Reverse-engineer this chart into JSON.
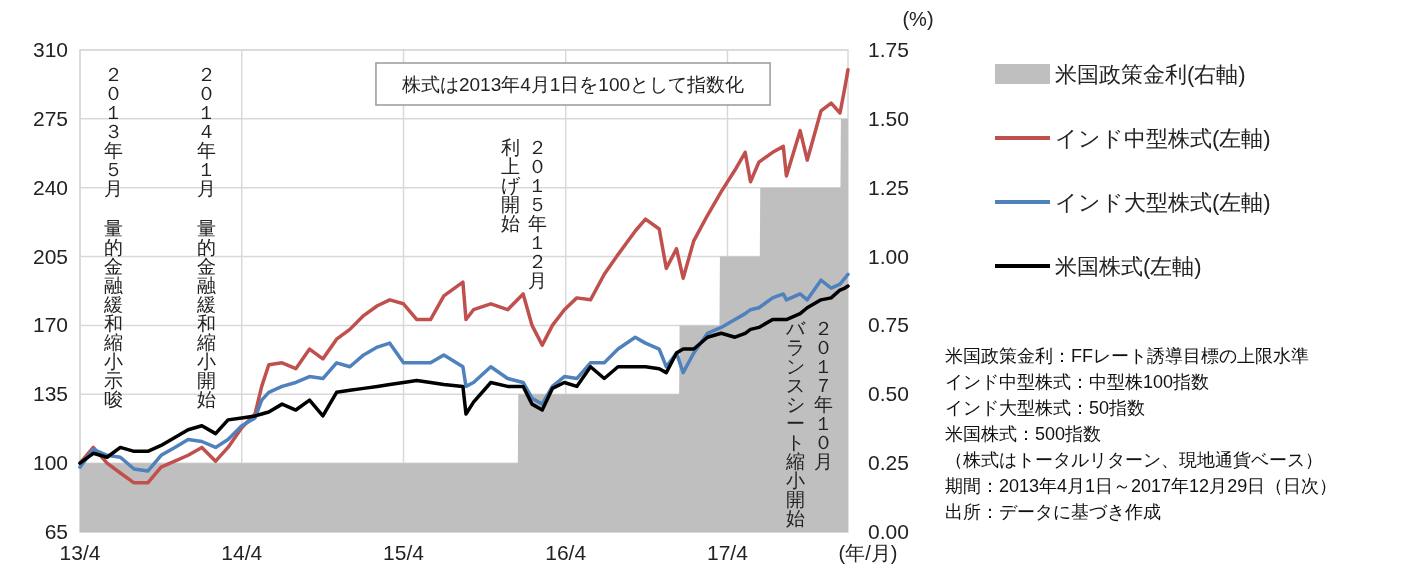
{
  "chart_data": {
    "type": "line",
    "x": [
      "2013-04-01",
      "2013-05-01",
      "2013-06-01",
      "2013-07-01",
      "2013-08-01",
      "2013-09-01",
      "2013-10-01",
      "2013-11-01",
      "2013-12-01",
      "2014-01-01",
      "2014-02-01",
      "2014-03-01",
      "2014-04-01",
      "2014-05-01",
      "2014-05-16",
      "2014-06-01",
      "2014-07-01",
      "2014-08-01",
      "2014-09-01",
      "2014-10-01",
      "2014-11-01",
      "2014-12-01",
      "2015-01-01",
      "2015-02-01",
      "2015-03-01",
      "2015-04-01",
      "2015-05-01",
      "2015-06-01",
      "2015-07-01",
      "2015-08-13",
      "2015-08-20",
      "2015-09-06",
      "2015-10-15",
      "2015-11-22",
      "2015-12-27",
      "2016-01-16",
      "2016-02-08",
      "2016-03-02",
      "2016-03-29",
      "2016-04-26",
      "2016-05-27",
      "2016-06-27",
      "2016-07-28",
      "2016-09-05",
      "2016-09-28",
      "2016-10-29",
      "2016-11-14",
      "2016-12-07",
      "2016-12-22",
      "2017-01-15",
      "2017-02-15",
      "2017-03-18",
      "2017-04-18",
      "2017-05-11",
      "2017-05-23",
      "2017-06-11",
      "2017-07-12",
      "2017-08-05",
      "2017-08-12",
      "2017-09-12",
      "2017-09-28",
      "2017-10-29",
      "2017-11-21",
      "2017-12-11",
      "2017-12-22",
      "2017-12-29"
    ],
    "series": [
      {
        "name": "米国政策金利(右軸)",
        "type": "area",
        "axis": "y2",
        "color": "#bfbfbf",
        "x": [
          "2013-04-01",
          "2015-12-15",
          "2015-12-16",
          "2016-12-13",
          "2016-12-14",
          "2017-03-14",
          "2017-03-15",
          "2017-06-13",
          "2017-06-14",
          "2017-12-12",
          "2017-12-13",
          "2017-12-29"
        ],
        "values": [
          0.25,
          0.25,
          0.5,
          0.5,
          0.75,
          0.75,
          1.0,
          1.0,
          1.25,
          1.25,
          1.5,
          1.5
        ]
      },
      {
        "name": "インド中型株式(左軸)",
        "color": "#c0504d",
        "values": [
          100,
          108,
          100,
          95,
          90,
          90,
          98,
          101,
          104,
          108,
          101,
          108,
          118,
          125,
          139,
          150,
          151,
          148,
          158,
          153,
          163,
          168,
          175,
          180,
          183,
          181,
          173,
          173,
          185,
          192,
          173,
          178,
          181,
          178,
          186,
          170,
          160,
          170,
          178,
          184,
          183,
          196,
          206,
          218,
          224,
          219,
          199,
          209,
          194,
          213,
          226,
          238,
          249,
          258,
          243,
          253,
          258,
          261,
          246,
          269,
          254,
          279,
          283,
          278,
          291,
          300
        ]
      },
      {
        "name": "インド大型株式(左軸)",
        "color": "#4f81bd",
        "values": [
          98,
          107,
          104,
          103,
          97,
          96,
          104,
          108,
          112,
          111,
          108,
          112,
          119,
          123,
          132,
          136,
          139,
          141,
          144,
          143,
          151,
          149,
          155,
          159,
          161,
          151,
          151,
          151,
          155,
          149,
          139,
          141,
          149,
          143,
          141,
          133,
          130,
          139,
          144,
          143,
          151,
          151,
          158,
          164,
          161,
          158,
          149,
          156,
          146,
          156,
          166,
          169,
          173,
          176,
          178,
          179,
          184,
          186,
          183,
          186,
          183,
          193,
          189,
          191,
          194,
          196
        ]
      },
      {
        "name": "米国株式(左軸)",
        "color": "#000000",
        "values": [
          100,
          105,
          103,
          108,
          106,
          106,
          109,
          113,
          117,
          119,
          115,
          122,
          123,
          124,
          125,
          126,
          130,
          127,
          132,
          124,
          136,
          137,
          138,
          139,
          140,
          141,
          142,
          141,
          140,
          139,
          125,
          131,
          141,
          139,
          139,
          130,
          127,
          138,
          141,
          139,
          149,
          143,
          149,
          149,
          149,
          148,
          146,
          156,
          158,
          158,
          164,
          166,
          164,
          166,
          168,
          169,
          173,
          173,
          173,
          176,
          179,
          183,
          184,
          188,
          189,
          190
        ]
      }
    ],
    "xlim": [
      "2013-04-01",
      "2017-12-29"
    ],
    "xticks": [
      {
        "value": "2013-04-01",
        "label": "13/4"
      },
      {
        "value": "2014-04-01",
        "label": "14/4"
      },
      {
        "value": "2015-04-01",
        "label": "15/4"
      },
      {
        "value": "2016-04-01",
        "label": "16/4"
      },
      {
        "value": "2017-04-01",
        "label": "17/4"
      }
    ],
    "xlabel": "(年/月)",
    "ylim": [
      65,
      310
    ],
    "yticks": [
      65,
      100,
      135,
      170,
      205,
      240,
      275,
      310
    ],
    "y2lim": [
      0,
      1.75
    ],
    "y2ticks": [
      {
        "value": 0,
        "label": "0.00"
      },
      {
        "value": 0.25,
        "label": "0.25"
      },
      {
        "value": 0.5,
        "label": "0.50"
      },
      {
        "value": 0.75,
        "label": "0.75"
      },
      {
        "value": 1.0,
        "label": "1.00"
      },
      {
        "value": 1.25,
        "label": "1.25"
      },
      {
        "value": 1.5,
        "label": "1.50"
      },
      {
        "value": 1.75,
        "label": "1.75"
      }
    ],
    "y2label": "(%)",
    "grid": true,
    "legend": "right",
    "line_style": "solid",
    "annotations": [
      "株式は2013年4月1日を100として指数化",
      "米国政策金利：FFレート誘導目標の上限水準",
      "インド中型株式：中型株100指数",
      "インド大型株式：50指数",
      "米国株式：500指数",
      "（株式はトータルリターン、現地通貨ベース）",
      "期間：2013年4月1日～2017年12月29日（日次）",
      "出所：データに基づき作成",
      "２０１３年５月",
      "量的金融緩和縮小示唆",
      "２０１４年１月",
      "量的金融緩和縮小開始",
      "２０１５年１２月",
      "利上げ開始",
      "２０１７年１０月",
      "バランスシート縮小開始"
    ]
  }
}
